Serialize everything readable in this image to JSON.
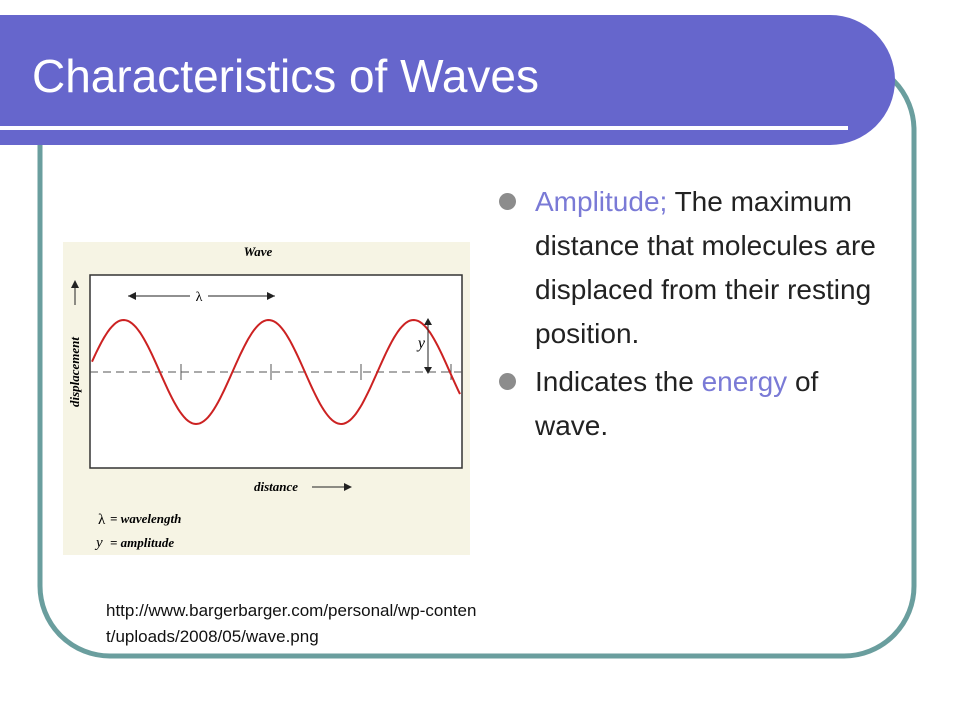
{
  "title": "Characteristics of Waves",
  "bullets": [
    {
      "segments": [
        {
          "text": "Amplitude;",
          "highlight": true
        },
        {
          "text": " The maximum distance that molecules are displaced from their resting position.",
          "highlight": false
        }
      ]
    },
    {
      "segments": [
        {
          "text": "Indicates the ",
          "highlight": false
        },
        {
          "text": "energy",
          "highlight": true
        },
        {
          "text": " of wave.",
          "highlight": false
        }
      ]
    }
  ],
  "figure": {
    "title": "Wave",
    "lambda": "λ",
    "y_axis": "displacement",
    "x_axis": "distance",
    "amplitude_mark": "y",
    "legend": [
      {
        "symbol": "λ",
        "text": "= wavelength"
      },
      {
        "symbol": "y",
        "text": "= amplitude"
      }
    ]
  },
  "caption": "http://www.bargerbarger.com/personal/wp-content/uploads/2008/05/wave.png"
}
